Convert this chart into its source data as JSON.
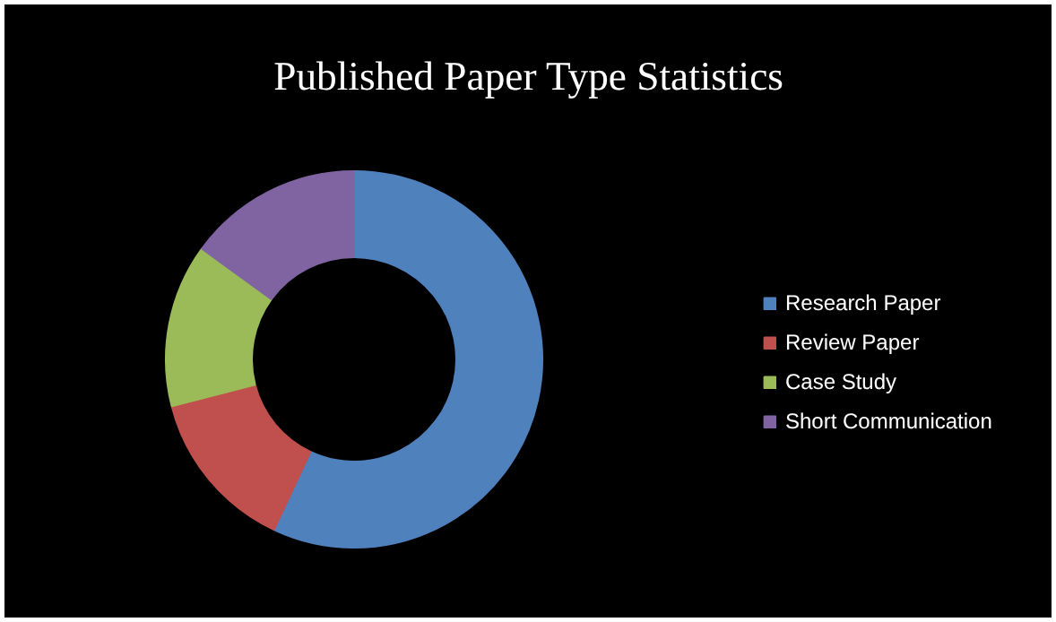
{
  "chart_data": {
    "type": "donut",
    "title": "Published Paper Type Statistics",
    "categories": [
      "Research Paper",
      "Review Paper",
      "Case Study",
      "Short Communication"
    ],
    "values": [
      57,
      14,
      14,
      15
    ],
    "colors": [
      "#4f81bd",
      "#c0504d",
      "#9bbb59",
      "#8064a2"
    ],
    "legend": "right"
  }
}
